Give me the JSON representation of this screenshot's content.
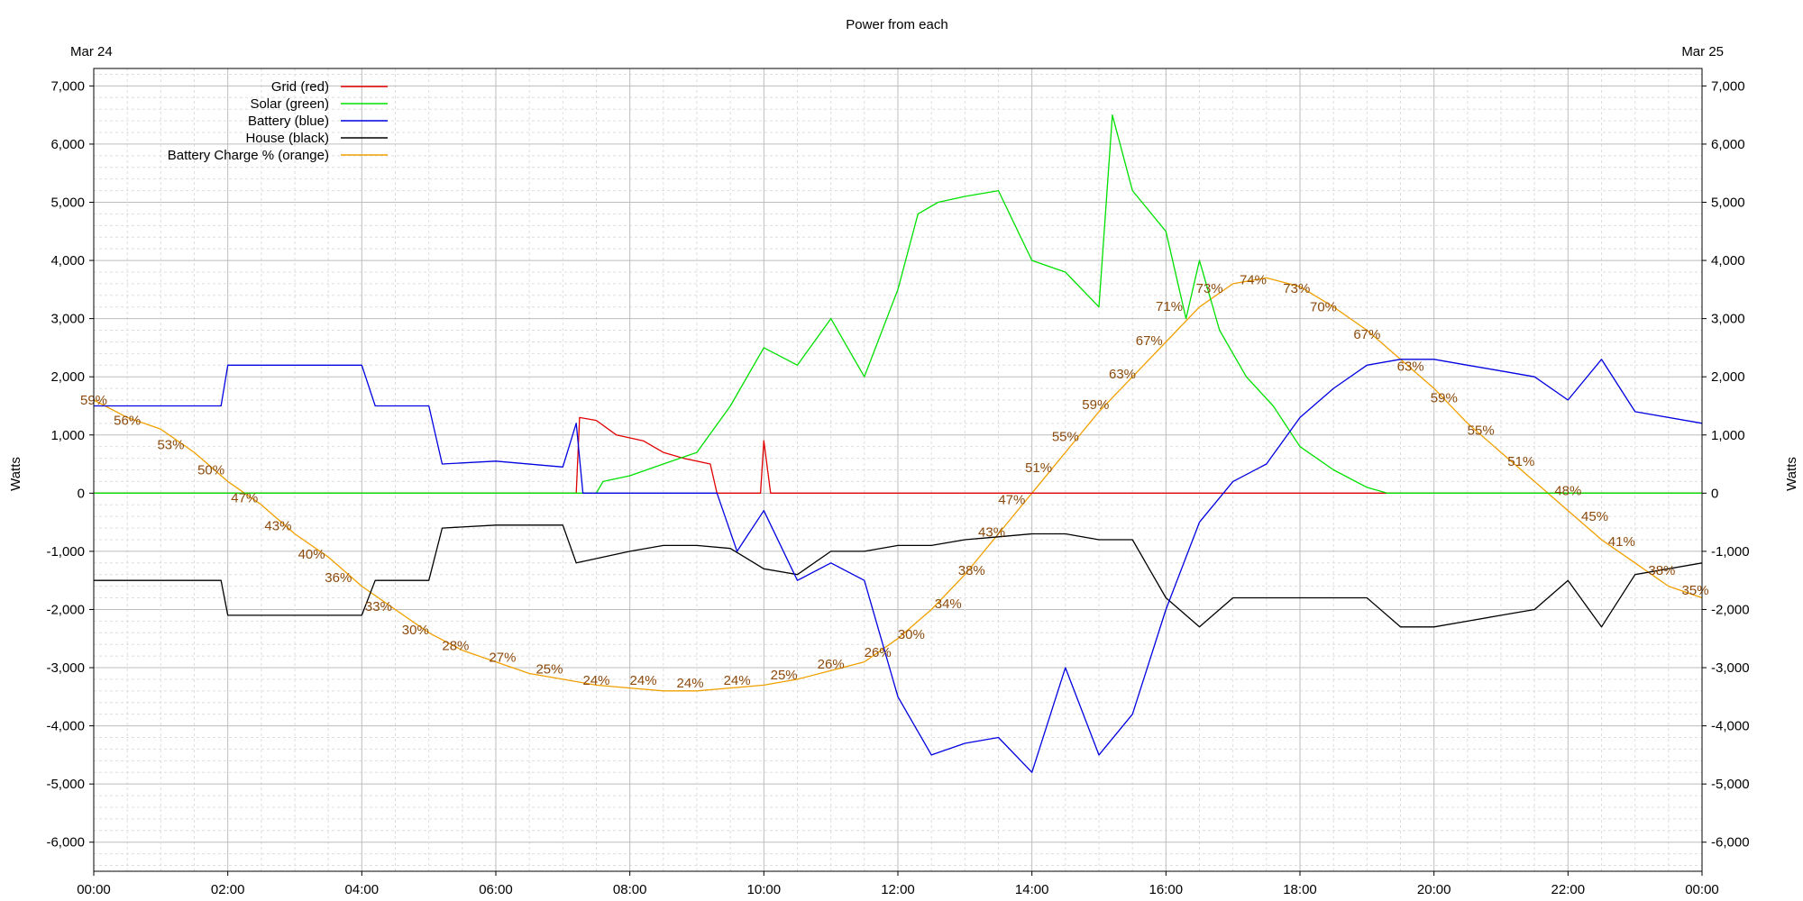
{
  "chart_data": {
    "type": "line",
    "title": "Power from each",
    "date_left": "Mar 24",
    "date_right": "Mar 25",
    "ylabel": "Watts",
    "ylim": [
      -6500,
      7300
    ],
    "xlim_hours": [
      0,
      24
    ],
    "grid": true,
    "legend_position": "top-left",
    "x_ticks": [
      "00:00",
      "02:00",
      "04:00",
      "06:00",
      "08:00",
      "10:00",
      "12:00",
      "14:00",
      "16:00",
      "18:00",
      "20:00",
      "22:00",
      "00:00"
    ],
    "y_ticks": [
      {
        "v": 7000,
        "label": "7,000"
      },
      {
        "v": 6000,
        "label": "6,000"
      },
      {
        "v": 5000,
        "label": "5,000"
      },
      {
        "v": 4000,
        "label": "4,000"
      },
      {
        "v": 3000,
        "label": "3,000"
      },
      {
        "v": 2000,
        "label": "2,000"
      },
      {
        "v": 1000,
        "label": "1,000"
      },
      {
        "v": 0,
        "label": "0"
      },
      {
        "v": -1000,
        "label": "-1,000"
      },
      {
        "v": -2000,
        "label": "-2,000"
      },
      {
        "v": -3000,
        "label": "-3,000"
      },
      {
        "v": -4000,
        "label": "-4,000"
      },
      {
        "v": -5000,
        "label": "-5,000"
      },
      {
        "v": -6000,
        "label": "-6,000"
      }
    ],
    "series": [
      {
        "name": "Grid (red)",
        "color": "#e00000",
        "points": [
          [
            0,
            0
          ],
          [
            7.2,
            0
          ],
          [
            7.25,
            1300
          ],
          [
            7.5,
            1250
          ],
          [
            7.8,
            1000
          ],
          [
            8.2,
            900
          ],
          [
            8.5,
            700
          ],
          [
            8.8,
            600
          ],
          [
            9.2,
            500
          ],
          [
            9.3,
            0
          ],
          [
            9.95,
            0
          ],
          [
            10.0,
            900
          ],
          [
            10.1,
            0
          ],
          [
            24,
            0
          ]
        ]
      },
      {
        "name": "Solar (green)",
        "color": "#00e000",
        "points": [
          [
            0,
            0
          ],
          [
            7.5,
            0
          ],
          [
            7.6,
            200
          ],
          [
            8.0,
            300
          ],
          [
            8.5,
            500
          ],
          [
            9.0,
            700
          ],
          [
            9.5,
            1500
          ],
          [
            10.0,
            2500
          ],
          [
            10.5,
            2200
          ],
          [
            11.0,
            3000
          ],
          [
            11.5,
            2000
          ],
          [
            12.0,
            3500
          ],
          [
            12.3,
            4800
          ],
          [
            12.6,
            5000
          ],
          [
            13.0,
            5100
          ],
          [
            13.5,
            5200
          ],
          [
            14.0,
            4000
          ],
          [
            14.5,
            3800
          ],
          [
            15.0,
            3200
          ],
          [
            15.2,
            6500
          ],
          [
            15.5,
            5200
          ],
          [
            16.0,
            4500
          ],
          [
            16.3,
            3000
          ],
          [
            16.5,
            4000
          ],
          [
            16.8,
            2800
          ],
          [
            17.2,
            2000
          ],
          [
            17.6,
            1500
          ],
          [
            18.0,
            800
          ],
          [
            18.5,
            400
          ],
          [
            19.0,
            100
          ],
          [
            19.3,
            0
          ],
          [
            24,
            0
          ]
        ]
      },
      {
        "name": "Battery (blue)",
        "color": "#0000e0",
        "points": [
          [
            0,
            1500
          ],
          [
            1.0,
            1500
          ],
          [
            1.9,
            1500
          ],
          [
            2.0,
            2200
          ],
          [
            3.0,
            2200
          ],
          [
            4.0,
            2200
          ],
          [
            4.2,
            1500
          ],
          [
            5.0,
            1500
          ],
          [
            5.2,
            500
          ],
          [
            6.0,
            550
          ],
          [
            7.0,
            450
          ],
          [
            7.2,
            1200
          ],
          [
            7.3,
            0
          ],
          [
            9.3,
            0
          ],
          [
            9.6,
            -1000
          ],
          [
            10.0,
            -300
          ],
          [
            10.5,
            -1500
          ],
          [
            11.0,
            -1200
          ],
          [
            11.5,
            -1500
          ],
          [
            12.0,
            -3500
          ],
          [
            12.5,
            -4500
          ],
          [
            13.0,
            -4300
          ],
          [
            13.5,
            -4200
          ],
          [
            14.0,
            -4800
          ],
          [
            14.5,
            -3000
          ],
          [
            15.0,
            -4500
          ],
          [
            15.5,
            -3800
          ],
          [
            16.0,
            -2000
          ],
          [
            16.5,
            -500
          ],
          [
            17.0,
            200
          ],
          [
            17.5,
            500
          ],
          [
            18.0,
            1300
          ],
          [
            18.5,
            1800
          ],
          [
            19.0,
            2200
          ],
          [
            19.5,
            2300
          ],
          [
            20.0,
            2300
          ],
          [
            20.5,
            2200
          ],
          [
            21.0,
            2100
          ],
          [
            21.5,
            2000
          ],
          [
            22.0,
            1600
          ],
          [
            22.5,
            2300
          ],
          [
            23.0,
            1400
          ],
          [
            24,
            1200
          ]
        ]
      },
      {
        "name": "House (black)",
        "color": "#000000",
        "points": [
          [
            0,
            -1500
          ],
          [
            1.0,
            -1500
          ],
          [
            1.9,
            -1500
          ],
          [
            2.0,
            -2100
          ],
          [
            3.0,
            -2100
          ],
          [
            4.0,
            -2100
          ],
          [
            4.2,
            -1500
          ],
          [
            5.0,
            -1500
          ],
          [
            5.2,
            -600
          ],
          [
            6.0,
            -550
          ],
          [
            7.0,
            -550
          ],
          [
            7.2,
            -1200
          ],
          [
            8.0,
            -1000
          ],
          [
            8.5,
            -900
          ],
          [
            9.0,
            -900
          ],
          [
            9.5,
            -950
          ],
          [
            10.0,
            -1300
          ],
          [
            10.5,
            -1400
          ],
          [
            11.0,
            -1000
          ],
          [
            11.5,
            -1000
          ],
          [
            12.0,
            -900
          ],
          [
            12.5,
            -900
          ],
          [
            13.0,
            -800
          ],
          [
            13.5,
            -750
          ],
          [
            14.0,
            -700
          ],
          [
            14.5,
            -700
          ],
          [
            15.0,
            -800
          ],
          [
            15.5,
            -800
          ],
          [
            16.0,
            -1800
          ],
          [
            16.5,
            -2300
          ],
          [
            17.0,
            -1800
          ],
          [
            17.5,
            -1800
          ],
          [
            18.0,
            -1800
          ],
          [
            18.5,
            -1800
          ],
          [
            19.0,
            -1800
          ],
          [
            19.5,
            -2300
          ],
          [
            20.0,
            -2300
          ],
          [
            20.5,
            -2200
          ],
          [
            21.0,
            -2100
          ],
          [
            21.5,
            -2000
          ],
          [
            22.0,
            -1500
          ],
          [
            22.5,
            -2300
          ],
          [
            23.0,
            -1400
          ],
          [
            24,
            -1200
          ]
        ]
      },
      {
        "name": "Battery Charge % (orange)",
        "color": "#f0a000",
        "points": [
          [
            0,
            1600
          ],
          [
            0.5,
            1300
          ],
          [
            1.0,
            1100
          ],
          [
            1.5,
            700
          ],
          [
            2.0,
            200
          ],
          [
            2.5,
            -200
          ],
          [
            3.0,
            -700
          ],
          [
            3.5,
            -1100
          ],
          [
            4.0,
            -1600
          ],
          [
            4.5,
            -2000
          ],
          [
            5.0,
            -2400
          ],
          [
            5.5,
            -2700
          ],
          [
            6.0,
            -2900
          ],
          [
            6.5,
            -3100
          ],
          [
            7.0,
            -3200
          ],
          [
            7.5,
            -3300
          ],
          [
            8.0,
            -3350
          ],
          [
            8.5,
            -3400
          ],
          [
            9.0,
            -3400
          ],
          [
            9.5,
            -3350
          ],
          [
            10.0,
            -3300
          ],
          [
            10.5,
            -3200
          ],
          [
            11.0,
            -3050
          ],
          [
            11.5,
            -2900
          ],
          [
            12.0,
            -2500
          ],
          [
            12.5,
            -2000
          ],
          [
            13.0,
            -1400
          ],
          [
            13.5,
            -700
          ],
          [
            14.0,
            0
          ],
          [
            14.5,
            700
          ],
          [
            15.0,
            1400
          ],
          [
            15.5,
            2000
          ],
          [
            16.0,
            2600
          ],
          [
            16.5,
            3200
          ],
          [
            17.0,
            3600
          ],
          [
            17.5,
            3700
          ],
          [
            18.0,
            3550
          ],
          [
            18.5,
            3200
          ],
          [
            19.0,
            2800
          ],
          [
            19.5,
            2300
          ],
          [
            20.0,
            1800
          ],
          [
            20.5,
            1200
          ],
          [
            21.0,
            700
          ],
          [
            21.5,
            200
          ],
          [
            22.0,
            -300
          ],
          [
            22.5,
            -800
          ],
          [
            23.0,
            -1200
          ],
          [
            23.5,
            -1600
          ],
          [
            24,
            -1800
          ]
        ]
      }
    ],
    "annotations": [
      {
        "x": 0.0,
        "y": 1600,
        "text": "59%"
      },
      {
        "x": 0.5,
        "y": 1250,
        "text": "56%"
      },
      {
        "x": 1.15,
        "y": 830,
        "text": "53%"
      },
      {
        "x": 1.75,
        "y": 400,
        "text": "50%"
      },
      {
        "x": 2.25,
        "y": -80,
        "text": "47%"
      },
      {
        "x": 2.75,
        "y": -560,
        "text": "43%"
      },
      {
        "x": 3.25,
        "y": -1050,
        "text": "40%"
      },
      {
        "x": 3.65,
        "y": -1450,
        "text": "36%"
      },
      {
        "x": 4.25,
        "y": -1950,
        "text": "33%"
      },
      {
        "x": 4.8,
        "y": -2350,
        "text": "30%"
      },
      {
        "x": 5.4,
        "y": -2620,
        "text": "28%"
      },
      {
        "x": 6.1,
        "y": -2820,
        "text": "27%"
      },
      {
        "x": 6.8,
        "y": -3020,
        "text": "25%"
      },
      {
        "x": 7.5,
        "y": -3220,
        "text": "24%"
      },
      {
        "x": 8.2,
        "y": -3220,
        "text": "24%"
      },
      {
        "x": 8.9,
        "y": -3260,
        "text": "24%"
      },
      {
        "x": 9.6,
        "y": -3220,
        "text": "24%"
      },
      {
        "x": 10.3,
        "y": -3120,
        "text": "25%"
      },
      {
        "x": 11.0,
        "y": -2940,
        "text": "26%"
      },
      {
        "x": 11.7,
        "y": -2740,
        "text": "26%"
      },
      {
        "x": 12.2,
        "y": -2430,
        "text": "30%"
      },
      {
        "x": 12.75,
        "y": -1900,
        "text": "34%"
      },
      {
        "x": 13.1,
        "y": -1330,
        "text": "38%"
      },
      {
        "x": 13.4,
        "y": -670,
        "text": "43%"
      },
      {
        "x": 13.7,
        "y": -110,
        "text": "47%"
      },
      {
        "x": 14.1,
        "y": 440,
        "text": "51%"
      },
      {
        "x": 14.5,
        "y": 970,
        "text": "55%"
      },
      {
        "x": 14.95,
        "y": 1520,
        "text": "59%"
      },
      {
        "x": 15.35,
        "y": 2050,
        "text": "63%"
      },
      {
        "x": 15.75,
        "y": 2620,
        "text": "67%"
      },
      {
        "x": 16.05,
        "y": 3210,
        "text": "71%"
      },
      {
        "x": 16.65,
        "y": 3520,
        "text": "73%"
      },
      {
        "x": 17.3,
        "y": 3670,
        "text": "74%"
      },
      {
        "x": 17.95,
        "y": 3520,
        "text": "73%"
      },
      {
        "x": 18.35,
        "y": 3200,
        "text": "70%"
      },
      {
        "x": 19.0,
        "y": 2730,
        "text": "67%"
      },
      {
        "x": 19.65,
        "y": 2180,
        "text": "63%"
      },
      {
        "x": 20.15,
        "y": 1640,
        "text": "59%"
      },
      {
        "x": 20.7,
        "y": 1080,
        "text": "55%"
      },
      {
        "x": 21.3,
        "y": 550,
        "text": "51%"
      },
      {
        "x": 22.0,
        "y": 40,
        "text": "48%"
      },
      {
        "x": 22.4,
        "y": -400,
        "text": "45%"
      },
      {
        "x": 22.8,
        "y": -830,
        "text": "41%"
      },
      {
        "x": 23.4,
        "y": -1330,
        "text": "38%"
      },
      {
        "x": 23.9,
        "y": -1670,
        "text": "35%"
      }
    ]
  }
}
